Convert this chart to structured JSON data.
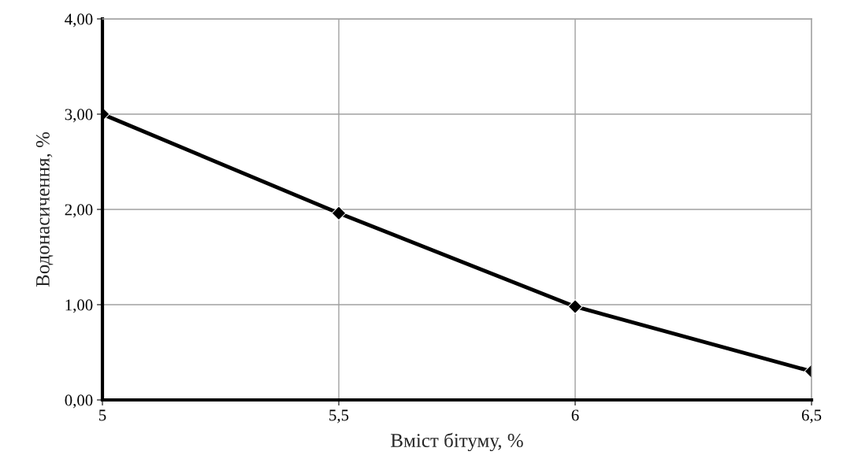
{
  "chart_data": {
    "type": "line",
    "xlabel": "Вміст бітуму, %",
    "ylabel": "Водонасичення, %",
    "x": [
      5,
      5.5,
      6,
      6.5
    ],
    "series": [
      {
        "color": "#000000",
        "values": [
          3.0,
          1.96,
          0.98,
          0.3
        ]
      }
    ],
    "xlim": [
      5,
      6.5
    ],
    "xticks": [
      {
        "value": 5,
        "label": "5"
      },
      {
        "value": 5.5,
        "label": "5,5"
      },
      {
        "value": 6,
        "label": "6"
      },
      {
        "value": 6.5,
        "label": "6,5"
      }
    ],
    "ylim": [
      0,
      4
    ],
    "yticks": [
      {
        "value": 0,
        "label": "0,00"
      },
      {
        "value": 1,
        "label": "1,00"
      },
      {
        "value": 2,
        "label": "2,00"
      },
      {
        "value": 3,
        "label": "3,00"
      },
      {
        "value": 4,
        "label": "4,00"
      }
    ],
    "grid": true,
    "marker": "diamond",
    "line_style": "solid"
  }
}
